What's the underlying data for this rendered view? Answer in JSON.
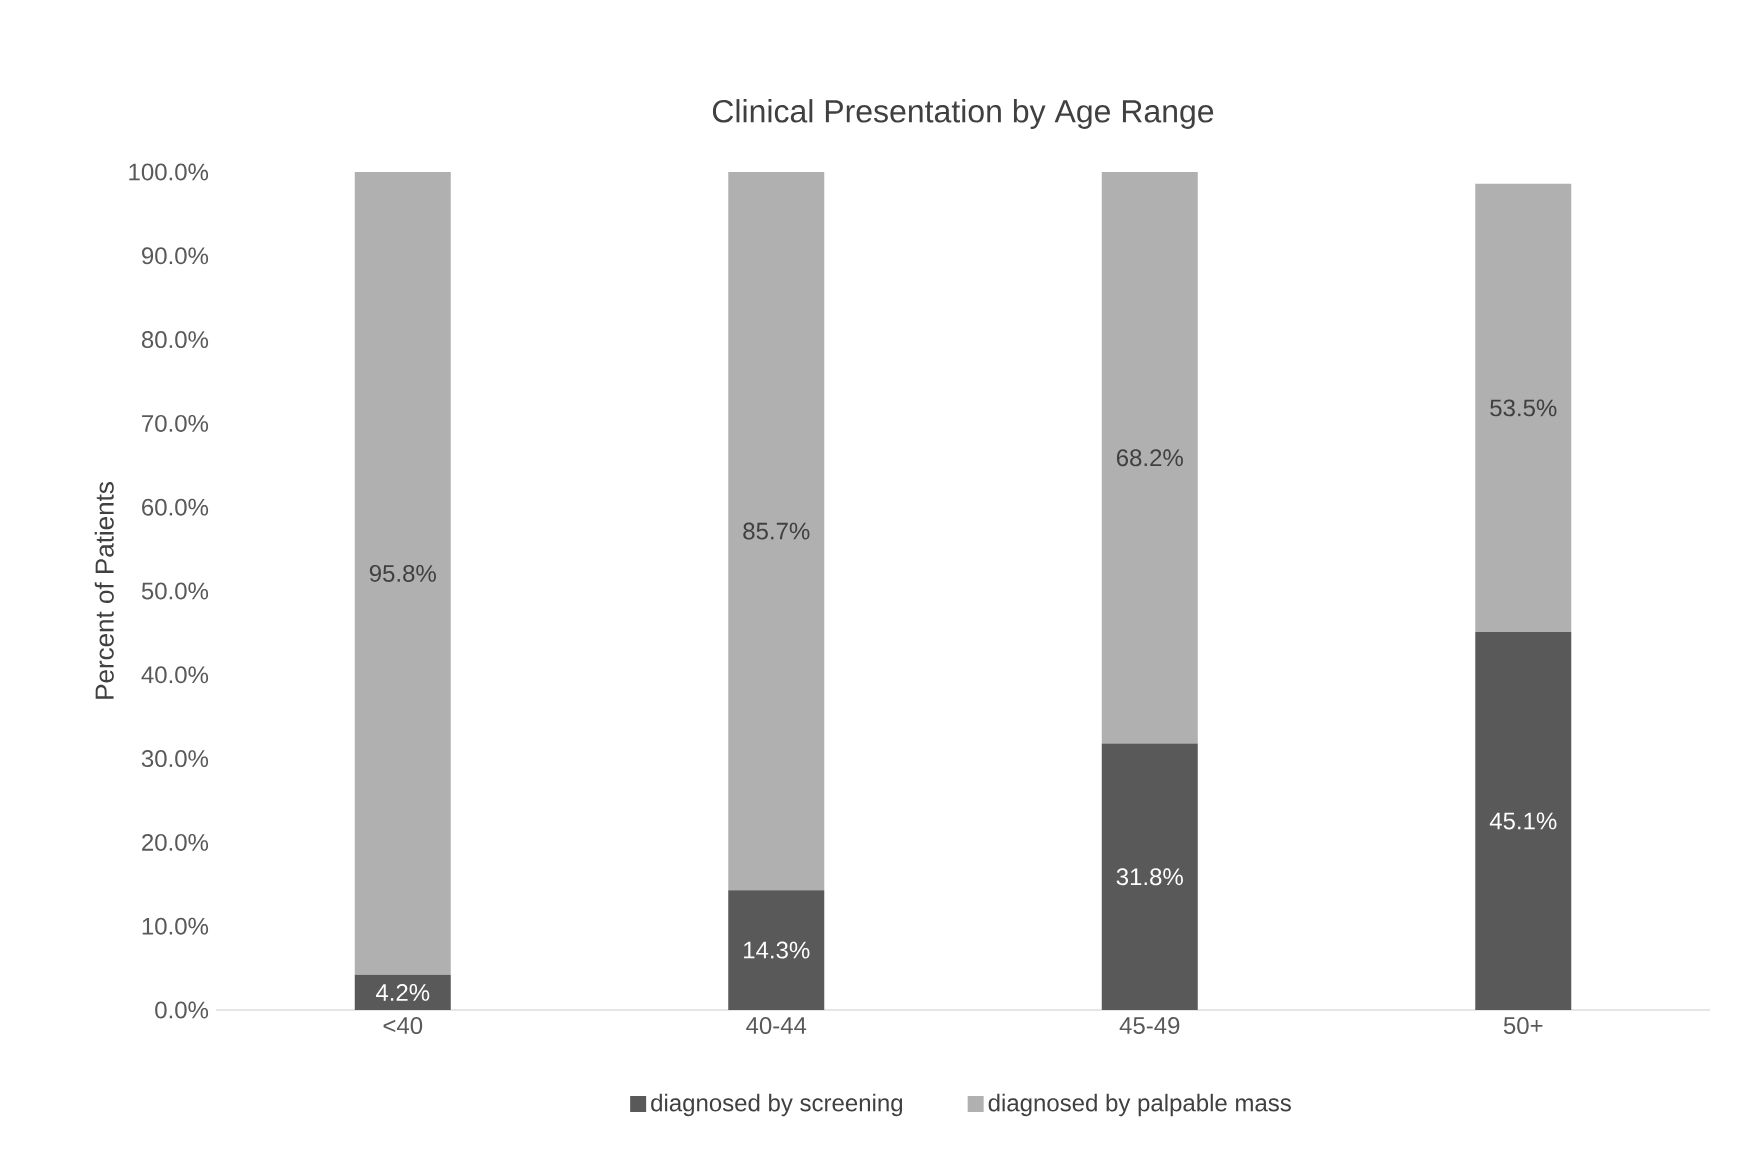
{
  "chart_data": {
    "type": "bar",
    "stacked": true,
    "title": "Clinical Presentation by Age Range",
    "ylabel": "Percent of Patients",
    "categories": [
      "<40",
      "40-44",
      "45-49",
      "50+"
    ],
    "series": [
      {
        "name": "diagnosed by screening",
        "color": "#595959",
        "values": [
          4.2,
          14.3,
          31.8,
          45.1
        ],
        "value_labels": [
          "4.2%",
          "14.3%",
          "31.8%",
          "45.1%"
        ]
      },
      {
        "name": "diagnosed by palpable mass",
        "color": "#b0b0b0",
        "values": [
          95.8,
          85.7,
          68.2,
          53.5
        ],
        "value_labels": [
          "95.8%",
          "85.7%",
          "68.2%",
          "53.5%"
        ]
      }
    ],
    "ylim": [
      0,
      100
    ],
    "yticks": [
      {
        "value": 0,
        "label": "0.0%"
      },
      {
        "value": 10,
        "label": "10.0%"
      },
      {
        "value": 20,
        "label": "20.0%"
      },
      {
        "value": 30,
        "label": "30.0%"
      },
      {
        "value": 40,
        "label": "40.0%"
      },
      {
        "value": 50,
        "label": "50.0%"
      },
      {
        "value": 60,
        "label": "60.0%"
      },
      {
        "value": 70,
        "label": "70.0%"
      },
      {
        "value": 80,
        "label": "80.0%"
      },
      {
        "value": 90,
        "label": "90.0%"
      },
      {
        "value": 100,
        "label": "100.0%"
      }
    ],
    "grid": false,
    "legend": "bottom"
  }
}
